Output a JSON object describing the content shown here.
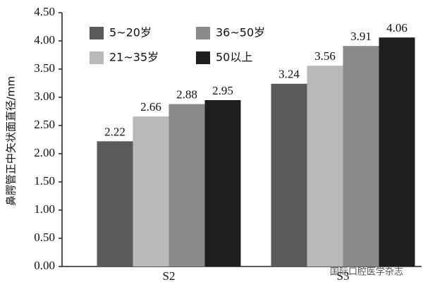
{
  "chart_data": {
    "type": "bar",
    "y_label": "鼻腭管正中矢状面直径/mm",
    "categories": [
      "S2",
      "S3"
    ],
    "series": [
      {
        "name": "5~20岁",
        "color": "#5a5a5a",
        "values": [
          2.22,
          3.24
        ]
      },
      {
        "name": "21~35岁",
        "color": "#b9b9b9",
        "values": [
          2.66,
          3.56
        ]
      },
      {
        "name": "36~50岁",
        "color": "#8a8a8a",
        "values": [
          2.88,
          3.91
        ]
      },
      {
        "name": "50以上",
        "color": "#1e1e1e",
        "values": [
          2.95,
          4.06
        ]
      }
    ],
    "ylim": [
      0,
      4.5
    ],
    "yticks": [
      {
        "value": 0,
        "label": "0.00"
      },
      {
        "value": 0.5,
        "label": "0.50"
      },
      {
        "value": 1,
        "label": "1.00"
      },
      {
        "value": 1.5,
        "label": "1.50"
      },
      {
        "value": 2,
        "label": "2.00"
      },
      {
        "value": 2.5,
        "label": "2.50"
      },
      {
        "value": 3,
        "label": "3.00"
      },
      {
        "value": 3.5,
        "label": "3.50"
      },
      {
        "value": 4,
        "label": "4.00"
      },
      {
        "value": 4.5,
        "label": "4.50"
      }
    ],
    "watermark": "国际口腔医学杂志"
  }
}
